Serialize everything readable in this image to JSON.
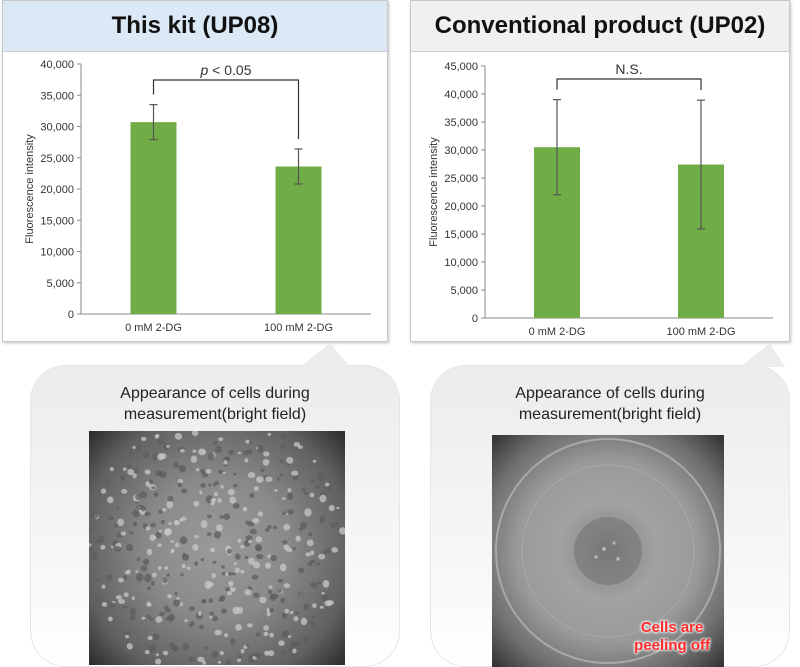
{
  "panels": [
    {
      "title": "This kit (UP08)"
    },
    {
      "title": "Conventional product (UP02)"
    }
  ],
  "chart_data": [
    {
      "type": "bar",
      "title": "This kit (UP08)",
      "categories": [
        "0 mM 2-DG",
        "100 mM 2-DG"
      ],
      "values": [
        30700,
        23600
      ],
      "errors": [
        2800,
        2800
      ],
      "ylabel": "Fluorescence intensity",
      "xlabel": "",
      "ylim": [
        0,
        40000
      ],
      "yticks": [
        0,
        5000,
        10000,
        15000,
        20000,
        25000,
        30000,
        35000,
        40000
      ],
      "ytick_labels": [
        "0",
        "5,000",
        "10,000",
        "15,000",
        "20,000",
        "25,000",
        "30,000",
        "35,000",
        "40,000"
      ],
      "significance": {
        "italic": "p",
        "rest": " < 0.05"
      },
      "bar_color": "#70ad47",
      "grid": false
    },
    {
      "type": "bar",
      "title": "Conventional product (UP02)",
      "categories": [
        "0 mM 2-DG",
        "100 mM 2-DG"
      ],
      "values": [
        30500,
        27400
      ],
      "errors": [
        8500,
        11500
      ],
      "ylabel": "Fluorescence intensity",
      "xlabel": "",
      "ylim": [
        0,
        45000
      ],
      "yticks": [
        0,
        5000,
        10000,
        15000,
        20000,
        25000,
        30000,
        35000,
        40000,
        45000
      ],
      "ytick_labels": [
        "0",
        "5,000",
        "10,000",
        "15,000",
        "20,000",
        "25,000",
        "30,000",
        "35,000",
        "40,000",
        "45,000"
      ],
      "significance": {
        "italic": "",
        "rest": "N.S."
      },
      "bar_color": "#70ad47",
      "grid": false
    }
  ],
  "bubbles": [
    {
      "caption_line1": "Appearance of cells during",
      "caption_line2": "measurement(bright field)"
    },
    {
      "caption_line1": "Appearance of cells during",
      "caption_line2": "measurement(bright field)",
      "overlay_line1": "Cells are",
      "overlay_line2": "peeling off",
      "overlay_color": "#ff2a2a"
    }
  ]
}
